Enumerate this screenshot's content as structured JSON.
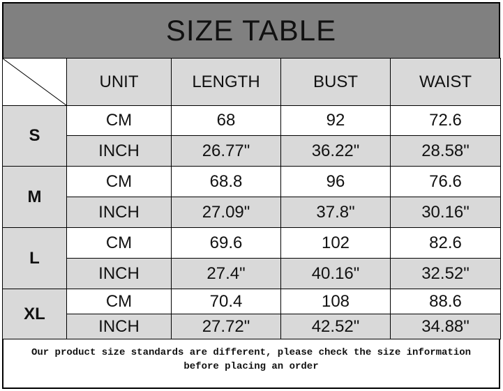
{
  "title": "SIZE TABLE",
  "headers": [
    "UNIT",
    "LENGTH",
    "BUST",
    "WAIST"
  ],
  "sizes": [
    {
      "size": "S",
      "rows": [
        {
          "unit": "CM",
          "length": "68",
          "bust": "92",
          "waist": "72.6"
        },
        {
          "unit": "INCH",
          "length": "26.77\"",
          "bust": "36.22\"",
          "waist": "28.58\""
        }
      ]
    },
    {
      "size": "M",
      "rows": [
        {
          "unit": "CM",
          "length": "68.8",
          "bust": "96",
          "waist": "76.6"
        },
        {
          "unit": "INCH",
          "length": "27.09\"",
          "bust": "37.8\"",
          "waist": "30.16\""
        }
      ]
    },
    {
      "size": "L",
      "rows": [
        {
          "unit": "CM",
          "length": "69.6",
          "bust": "102",
          "waist": "82.6"
        },
        {
          "unit": "INCH",
          "length": "27.4\"",
          "bust": "40.16\"",
          "waist": "32.52\""
        }
      ]
    },
    {
      "size": "XL",
      "rows": [
        {
          "unit": "CM",
          "length": "70.4",
          "bust": "108",
          "waist": "88.6"
        },
        {
          "unit": "INCH",
          "length": "27.72\"",
          "bust": "42.52\"",
          "waist": "34.88\""
        }
      ]
    }
  ],
  "note_line1": "Our product size standards are different, please check the size information",
  "note_line2": "before placing an order",
  "colors": {
    "title_bg": "#808080",
    "cell_gray": "#d9d9d9"
  }
}
